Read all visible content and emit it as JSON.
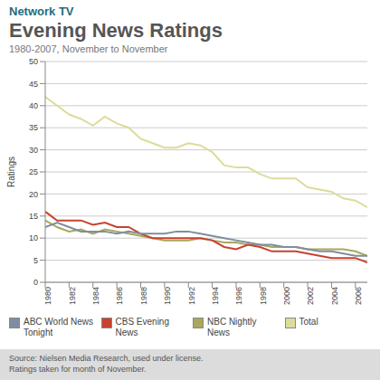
{
  "chart_data": {
    "type": "line",
    "header": "Network TV",
    "title": "Evening News Ratings",
    "subtitle": "1980-2007, November to November",
    "y_label": "Ratings",
    "x": [
      1980,
      1981,
      1982,
      1983,
      1984,
      1985,
      1986,
      1987,
      1988,
      1989,
      1990,
      1991,
      1992,
      1993,
      1994,
      1995,
      1996,
      1997,
      1998,
      1999,
      2000,
      2001,
      2002,
      2003,
      2004,
      2005,
      2006,
      2007
    ],
    "xlim": [
      1980,
      2007
    ],
    "xticks": [
      1980,
      1982,
      1984,
      1986,
      1988,
      1990,
      1992,
      1994,
      1996,
      1998,
      2000,
      2002,
      2004,
      2006
    ],
    "ylim": [
      0,
      50
    ],
    "yticks": [
      0,
      5,
      10,
      15,
      20,
      25,
      30,
      35,
      40,
      45,
      50
    ],
    "grid": true,
    "legend": "bottom",
    "series": [
      {
        "name": "ABC World News Tonight",
        "color": "#7f8e9e",
        "values": [
          12.5,
          13.5,
          12.5,
          11.5,
          11.5,
          11.5,
          11,
          11.5,
          11,
          11,
          11,
          11.5,
          11.5,
          11,
          10.5,
          10,
          9.5,
          9,
          8.5,
          8.5,
          8,
          8,
          7.5,
          7,
          7,
          6.5,
          6,
          6
        ]
      },
      {
        "name": "CBS Evening News",
        "color": "#c8412f",
        "values": [
          16,
          14,
          14,
          14,
          13,
          13.5,
          12.5,
          12.5,
          11,
          10,
          10,
          10,
          10,
          10,
          9.5,
          8,
          7.5,
          8.5,
          8,
          7,
          7,
          7,
          6.5,
          6,
          5.5,
          5.5,
          5.5,
          4.5
        ]
      },
      {
        "name": "NBC Nightly News",
        "color": "#a9a75e",
        "values": [
          14,
          12.5,
          11.5,
          12,
          11,
          12,
          11.5,
          11,
          10.5,
          10,
          9.5,
          9.5,
          9.5,
          10,
          9.5,
          9,
          9,
          8.5,
          8.5,
          8,
          8,
          8,
          7.5,
          7.5,
          7.5,
          7.5,
          7,
          6
        ]
      },
      {
        "name": "Total",
        "color": "#dcdc9c",
        "values": [
          42,
          40,
          38,
          37,
          35.5,
          37.5,
          36,
          35,
          32.5,
          31.5,
          30.5,
          30.5,
          31.5,
          31,
          29.5,
          26.5,
          26,
          26,
          24.5,
          23.5,
          23.5,
          23.5,
          21.5,
          21,
          20.5,
          19,
          18.5,
          17
        ]
      }
    ],
    "notes": [
      "Source: Nielsen Media Research, used under license.",
      "Ratings taken for month of November."
    ]
  }
}
